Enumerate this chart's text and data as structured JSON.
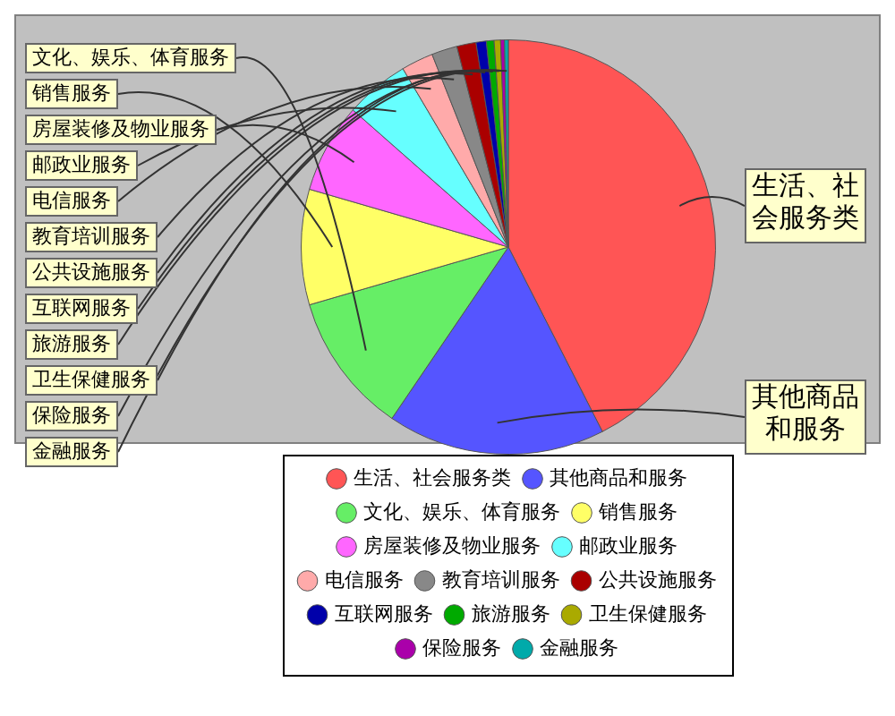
{
  "chart_data": {
    "type": "pie",
    "categories": [
      "生活、社会服务类",
      "其他商品和服务",
      "文化、娱乐、体育服务",
      "销售服务",
      "房屋装修及物业服务",
      "邮政业服务",
      "电信服务",
      "教育培训服务",
      "公共设施服务",
      "互联网服务",
      "旅游服务",
      "卫生保健服务",
      "保险服务",
      "金融服务"
    ],
    "values": [
      42.5,
      17,
      11,
      9,
      7,
      5,
      2.5,
      2,
      1.5,
      0.8,
      0.6,
      0.5,
      0.3,
      0.3
    ],
    "colors": [
      "#ff5555",
      "#5555ff",
      "#66ee66",
      "#ffff66",
      "#ff66ff",
      "#66ffff",
      "#ffaaaa",
      "#888888",
      "#aa0000",
      "#0000aa",
      "#00aa00",
      "#aaaa00",
      "#aa00aa",
      "#00aaaa"
    ],
    "legend": "bottom"
  }
}
